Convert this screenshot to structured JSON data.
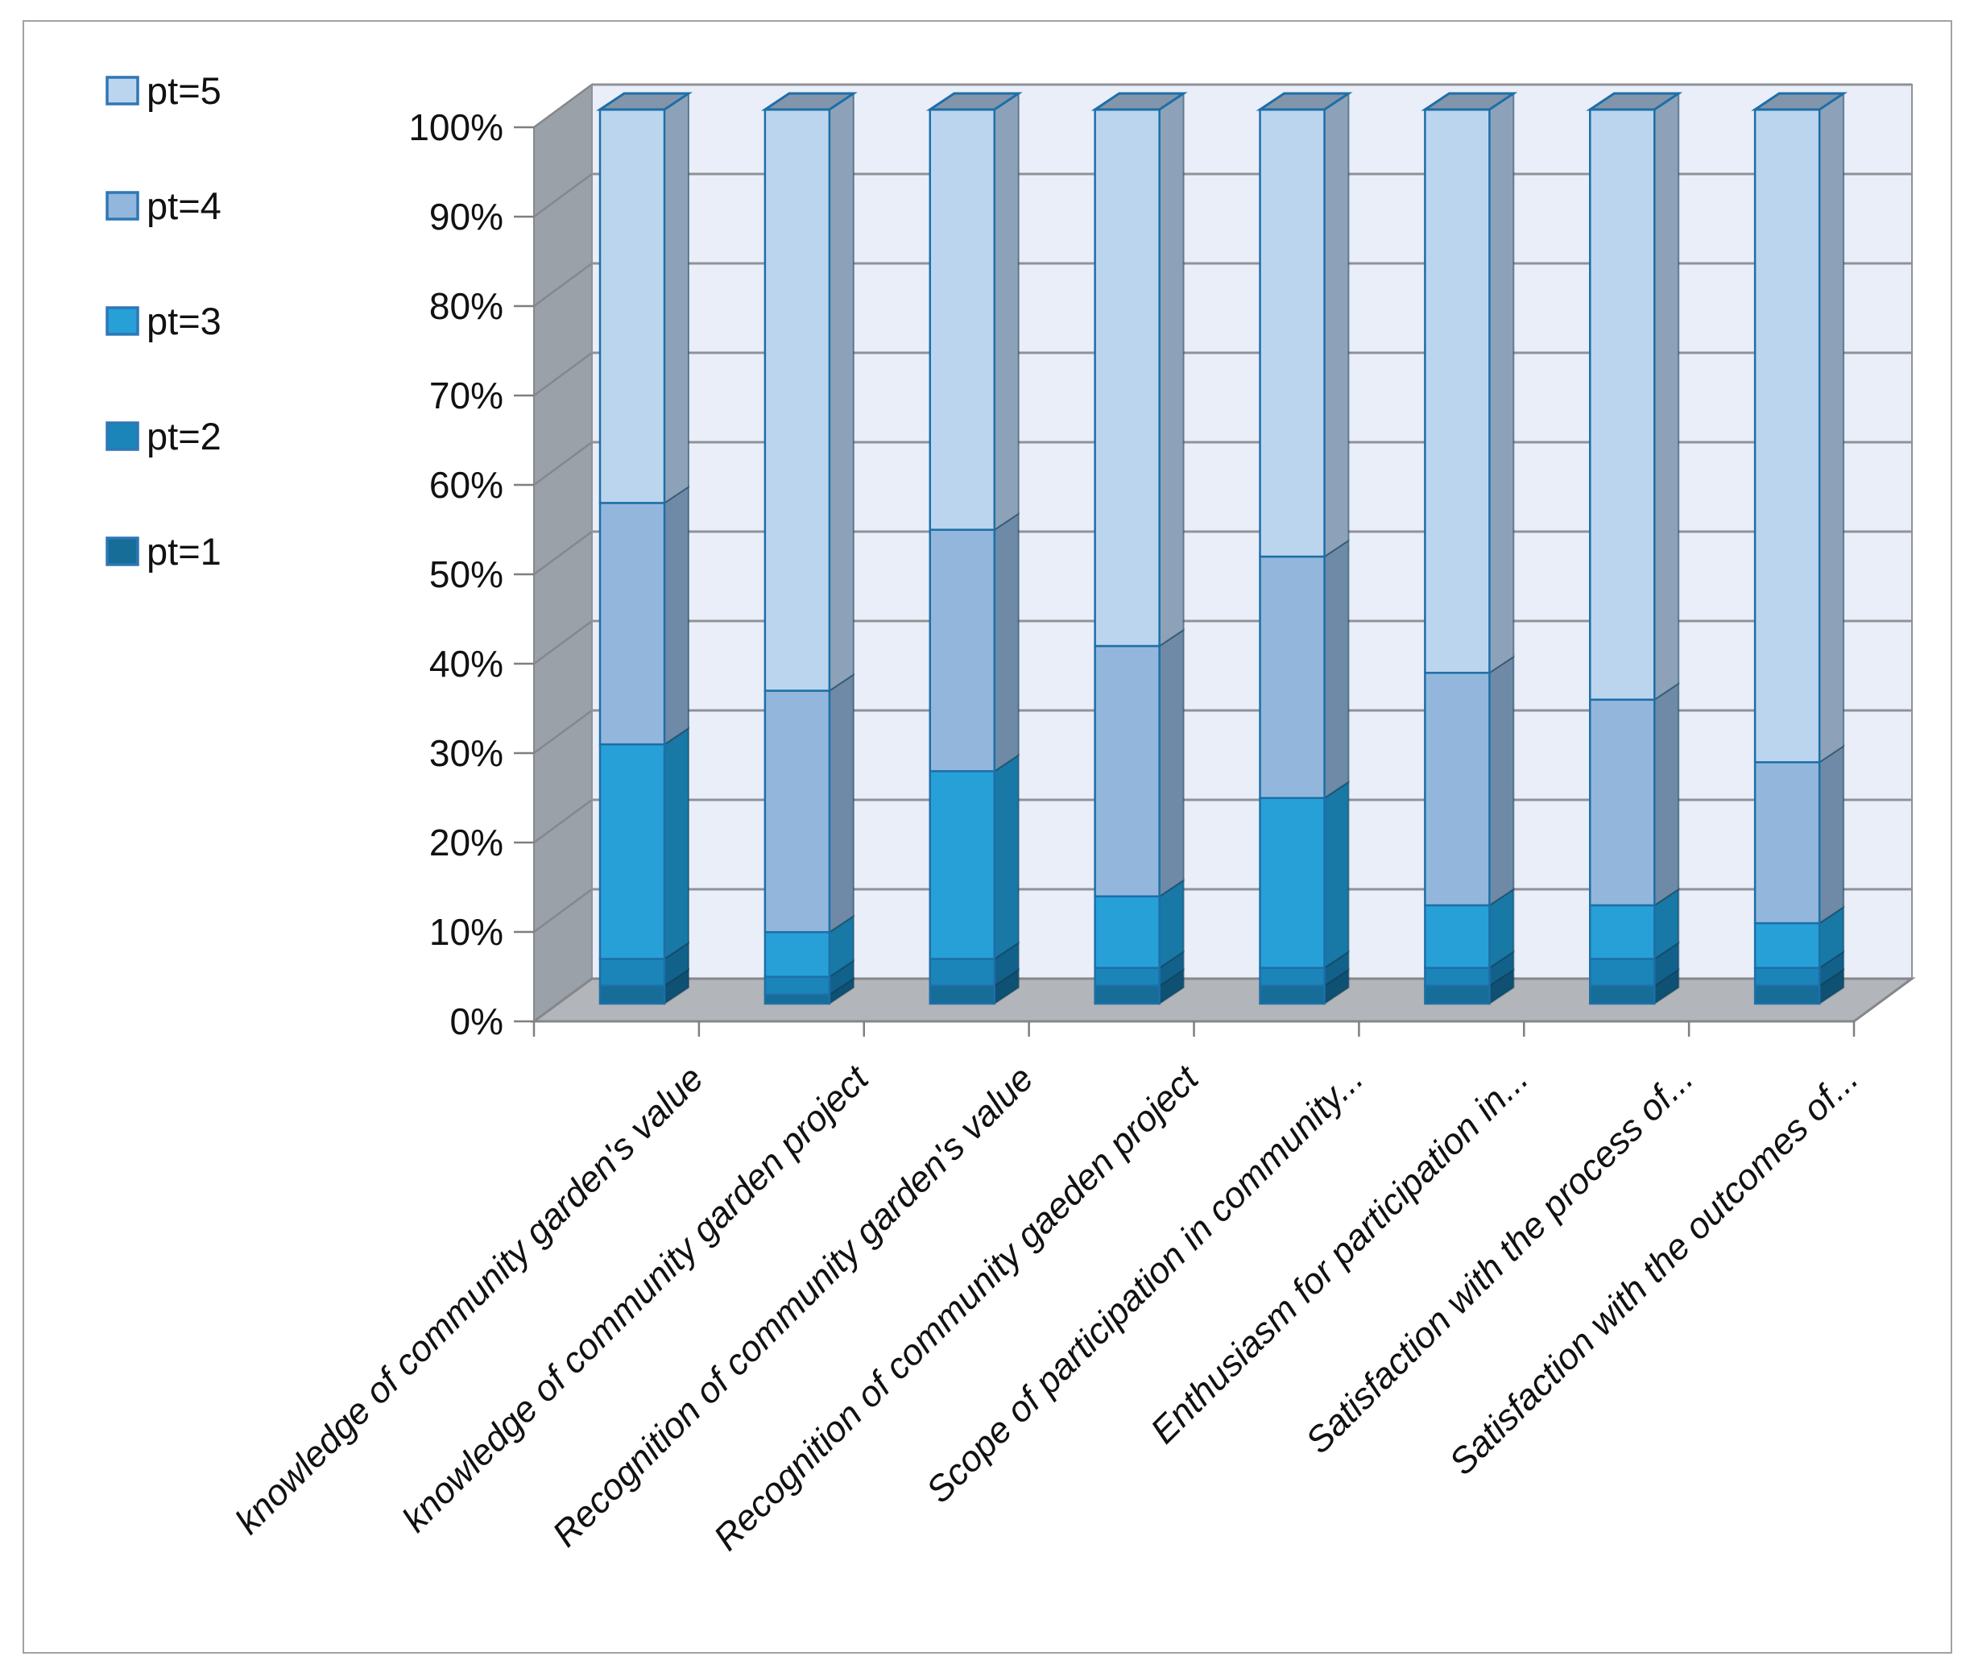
{
  "legend": {
    "position": "top-left",
    "items": [
      {
        "label": "pt=5",
        "color": "#bcd5ee"
      },
      {
        "label": "pt=4",
        "color": "#93b7dc"
      },
      {
        "label": "pt=3",
        "color": "#27a0d8"
      },
      {
        "label": "pt=2",
        "color": "#1b84b8"
      },
      {
        "label": "pt=1",
        "color": "#166d98"
      }
    ]
  },
  "y_axis": {
    "tick_labels": [
      "100%",
      "90%",
      "80%",
      "70%",
      "60%",
      "50%",
      "40%",
      "30%",
      "20%",
      "10%",
      "0%"
    ]
  },
  "chart_data": {
    "type": "bar",
    "variant": "3d-stacked-100pct-column",
    "title": "",
    "xlabel": "",
    "ylabel": "",
    "ylim": [
      0,
      100
    ],
    "ytick_step": 10,
    "grid": true,
    "legend_position": "top-left",
    "categories": [
      "knowledge of community garden's value",
      "knowledge of community garden project",
      "Recognition of community garden's value",
      "Recognition of community gaeden project",
      "Scope of participation in community...",
      "Enthusiasm for participation in...",
      "Satisfaction with the process of...",
      "Satisfaction with the outcomes of..."
    ],
    "series": [
      {
        "name": "pt=1",
        "color": "#166d98",
        "side_color": "#0e5173",
        "values": [
          2,
          1,
          2,
          2,
          2,
          2,
          2,
          2
        ]
      },
      {
        "name": "pt=2",
        "color": "#1b84b8",
        "side_color": "#12618b",
        "values": [
          3,
          2,
          3,
          2,
          2,
          2,
          3,
          2
        ]
      },
      {
        "name": "pt=3",
        "color": "#27a0d8",
        "side_color": "#1878a6",
        "values": [
          24,
          5,
          21,
          8,
          19,
          7,
          6,
          5
        ]
      },
      {
        "name": "pt=4",
        "color": "#93b7dc",
        "side_color": "#6e8aa6",
        "values": [
          27,
          27,
          27,
          28,
          27,
          26,
          23,
          18
        ]
      },
      {
        "name": "pt=5",
        "color": "#bcd5ee",
        "side_color": "#8da2b8",
        "values": [
          44,
          65,
          47,
          60,
          50,
          63,
          66,
          73
        ]
      }
    ],
    "colors": {
      "segment_stroke": "#1d6fa8",
      "cap_fill": "#8295aa",
      "back_wall": "#e9eef9",
      "gridline": "#8f9297",
      "side_wall": "#9aa1a9",
      "side_wall_line": "#83888e",
      "floor": "#b2b5b9",
      "floor_edge": "#85878a",
      "tick": "#7f7f7f",
      "legend_swatch_border": "#2e77b5",
      "frame_border": "#a2a2a2"
    }
  }
}
